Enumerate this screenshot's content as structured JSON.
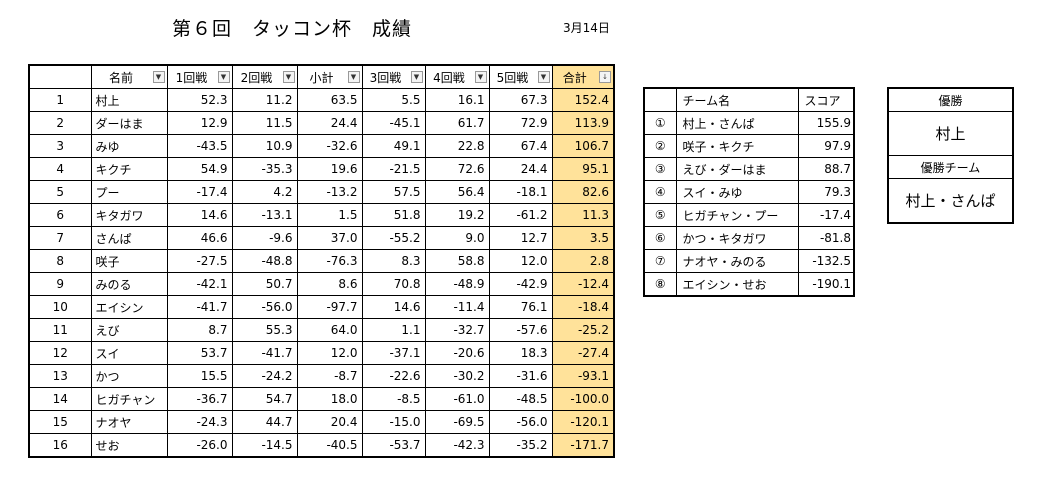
{
  "header": {
    "title": "第６回　タッコン杯　成績",
    "date": "3月14日"
  },
  "main_table": {
    "columns": [
      "",
      "名前",
      "1回戦",
      "2回戦",
      "小計",
      "3回戦",
      "4回戦",
      "5回戦",
      "合計"
    ],
    "rows": [
      [
        "1",
        "村上",
        "52.3",
        "11.2",
        "63.5",
        "5.5",
        "16.1",
        "67.3",
        "152.4"
      ],
      [
        "2",
        "ダーはま",
        "12.9",
        "11.5",
        "24.4",
        "-45.1",
        "61.7",
        "72.9",
        "113.9"
      ],
      [
        "3",
        "みゆ",
        "-43.5",
        "10.9",
        "-32.6",
        "49.1",
        "22.8",
        "67.4",
        "106.7"
      ],
      [
        "4",
        "キクチ",
        "54.9",
        "-35.3",
        "19.6",
        "-21.5",
        "72.6",
        "24.4",
        "95.1"
      ],
      [
        "5",
        "プー",
        "-17.4",
        "4.2",
        "-13.2",
        "57.5",
        "56.4",
        "-18.1",
        "82.6"
      ],
      [
        "6",
        "キタガワ",
        "14.6",
        "-13.1",
        "1.5",
        "51.8",
        "19.2",
        "-61.2",
        "11.3"
      ],
      [
        "7",
        "さんぱ",
        "46.6",
        "-9.6",
        "37.0",
        "-55.2",
        "9.0",
        "12.7",
        "3.5"
      ],
      [
        "8",
        "咲子",
        "-27.5",
        "-48.8",
        "-76.3",
        "8.3",
        "58.8",
        "12.0",
        "2.8"
      ],
      [
        "9",
        "みのる",
        "-42.1",
        "50.7",
        "8.6",
        "70.8",
        "-48.9",
        "-42.9",
        "-12.4"
      ],
      [
        "10",
        "エイシン",
        "-41.7",
        "-56.0",
        "-97.7",
        "14.6",
        "-11.4",
        "76.1",
        "-18.4"
      ],
      [
        "11",
        "えび",
        "8.7",
        "55.3",
        "64.0",
        "1.1",
        "-32.7",
        "-57.6",
        "-25.2"
      ],
      [
        "12",
        "スイ",
        "53.7",
        "-41.7",
        "12.0",
        "-37.1",
        "-20.6",
        "18.3",
        "-27.4"
      ],
      [
        "13",
        "かつ",
        "15.5",
        "-24.2",
        "-8.7",
        "-22.6",
        "-30.2",
        "-31.6",
        "-93.1"
      ],
      [
        "14",
        "ヒガチャン",
        "-36.7",
        "54.7",
        "18.0",
        "-8.5",
        "-61.0",
        "-48.5",
        "-100.0"
      ],
      [
        "15",
        "ナオヤ",
        "-24.3",
        "44.7",
        "20.4",
        "-15.0",
        "-69.5",
        "-56.0",
        "-120.1"
      ],
      [
        "16",
        "せお",
        "-26.0",
        "-14.5",
        "-40.5",
        "-53.7",
        "-42.3",
        "-35.2",
        "-171.7"
      ]
    ]
  },
  "team_table": {
    "columns": [
      "",
      "チーム名",
      "スコア"
    ],
    "rows": [
      [
        "①",
        "村上・さんぱ",
        "155.9"
      ],
      [
        "②",
        "咲子・キクチ",
        "97.9"
      ],
      [
        "③",
        "えび・ダーはま",
        "88.7"
      ],
      [
        "④",
        "スイ・みゆ",
        "79.3"
      ],
      [
        "⑤",
        "ヒガチャン・プー",
        "-17.4"
      ],
      [
        "⑥",
        "かつ・キタガワ",
        "-81.8"
      ],
      [
        "⑦",
        "ナオヤ・みのる",
        "-132.5"
      ],
      [
        "⑧",
        "エイシン・せお",
        "-190.1"
      ]
    ]
  },
  "winner_box": {
    "winner_label": "優勝",
    "winner": "村上",
    "team_label": "優勝チーム",
    "team": "村上・さんぱ"
  },
  "icons": {
    "filter": "dropdown-arrow-icon",
    "sort": "sort-desc-icon"
  },
  "colors": {
    "total_highlight": "#ffe29a"
  }
}
